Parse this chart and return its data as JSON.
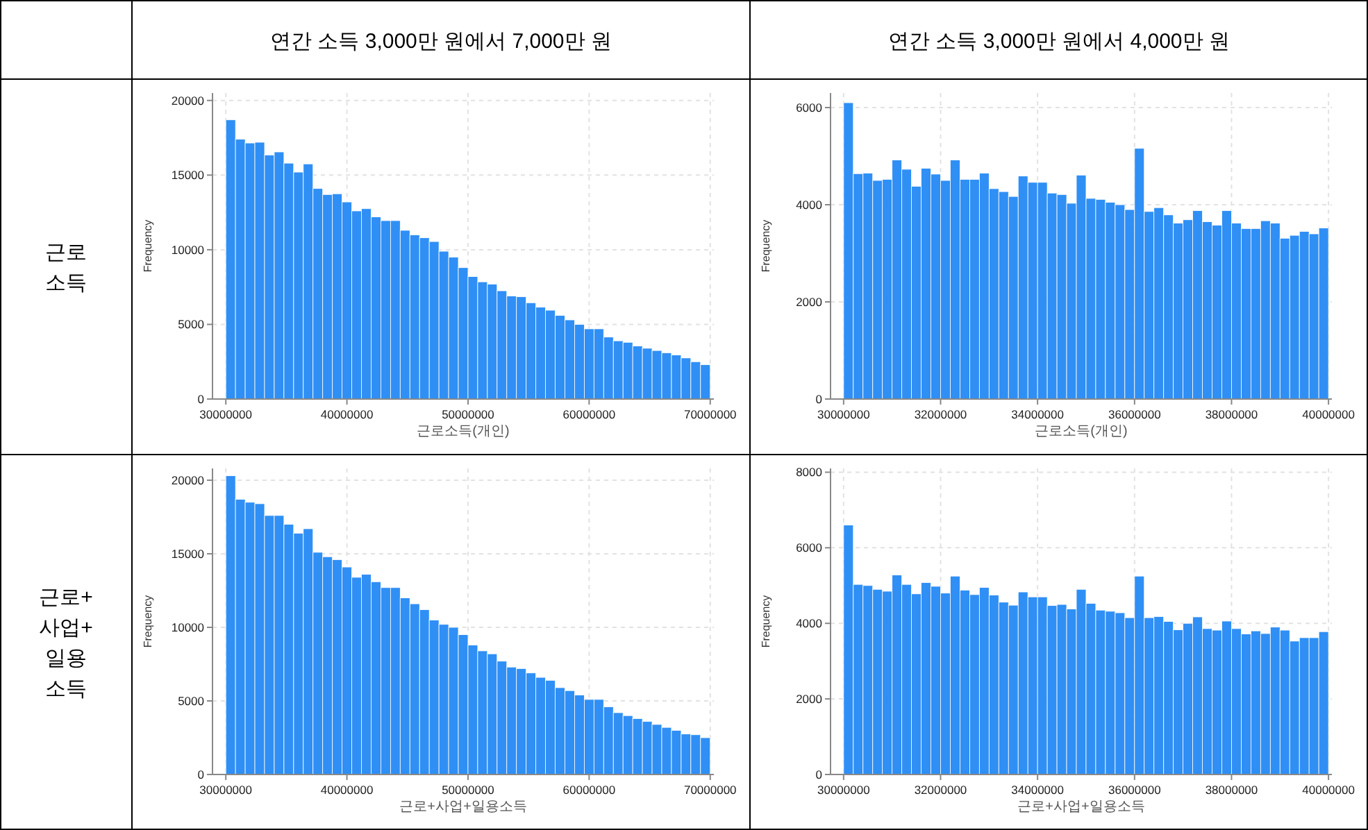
{
  "chart_data": [
    {
      "type": "histogram",
      "title": "연간 소득 3,000만 원에서 7,000만 원",
      "annotations": [
        "근로 소득"
      ],
      "xlabel": "근로소득(개인)",
      "ylabel": "Frequency",
      "color": "#2f8ff5",
      "grid": true,
      "bins": [
        30000000,
        30800000,
        31600000,
        32400000,
        33200000,
        34000000,
        34800000,
        35600000,
        36400000,
        37200000,
        38000000,
        38800000,
        39600000,
        40400000,
        41200000,
        42000000,
        42800000,
        43600000,
        44400000,
        45200000,
        46000000,
        46800000,
        47600000,
        48400000,
        49200000,
        50000000,
        50800000,
        51600000,
        52400000,
        53200000,
        54000000,
        54800000,
        55600000,
        56400000,
        57200000,
        58000000,
        58800000,
        59600000,
        60400000,
        61200000,
        62000000,
        62800000,
        63600000,
        64400000,
        65200000,
        66000000,
        66800000,
        67600000,
        68400000,
        69200000,
        70000000
      ],
      "values": [
        18700,
        17400,
        17150,
        17200,
        16350,
        16550,
        15800,
        15200,
        15750,
        14100,
        13700,
        13750,
        13200,
        12600,
        12750,
        12200,
        11950,
        11950,
        11300,
        11000,
        10800,
        10550,
        9900,
        9500,
        8800,
        8200,
        7850,
        7700,
        7250,
        6900,
        6850,
        6450,
        6150,
        5950,
        5600,
        5300,
        5000,
        4700,
        4700,
        4150,
        3900,
        3800,
        3550,
        3400,
        3250,
        3100,
        2950,
        2750,
        2500,
        2300
      ],
      "xlim": [
        28900000,
        70300000
      ],
      "xticks": [
        30000000,
        40000000,
        50000000,
        60000000,
        70000000
      ],
      "ylim": [
        0,
        20500
      ],
      "yticks": [
        0,
        5000,
        10000,
        15000,
        20000
      ]
    },
    {
      "type": "histogram",
      "title": "연간 소득 3,000만 원에서 4,000만 원",
      "xlabel": "근로소득(개인)",
      "ylabel": "Frequency",
      "color": "#2f8ff5",
      "grid": true,
      "bins": [
        30000000,
        30200000,
        30400000,
        30600000,
        30800000,
        31000000,
        31200000,
        31400000,
        31600000,
        31800000,
        32000000,
        32200000,
        32400000,
        32600000,
        32800000,
        33000000,
        33200000,
        33400000,
        33600000,
        33800000,
        34000000,
        34200000,
        34400000,
        34600000,
        34800000,
        35000000,
        35200000,
        35400000,
        35600000,
        35800000,
        36000000,
        36200000,
        36400000,
        36600000,
        36800000,
        37000000,
        37200000,
        37400000,
        37600000,
        37800000,
        38000000,
        38200000,
        38400000,
        38600000,
        38800000,
        39000000,
        39200000,
        39400000,
        39600000,
        39800000,
        40000000
      ],
      "values": [
        6100,
        4640,
        4650,
        4500,
        4520,
        4920,
        4730,
        4380,
        4750,
        4630,
        4500,
        4920,
        4520,
        4520,
        4650,
        4330,
        4270,
        4170,
        4590,
        4460,
        4460,
        4240,
        4210,
        4030,
        4610,
        4130,
        4110,
        4050,
        4000,
        3900,
        5160,
        3860,
        3940,
        3790,
        3620,
        3690,
        3880,
        3650,
        3580,
        3880,
        3620,
        3510,
        3510,
        3670,
        3620,
        3310,
        3370,
        3450,
        3400,
        3520
      ],
      "xlim": [
        29730000,
        40070000
      ],
      "xticks": [
        30000000,
        32000000,
        34000000,
        36000000,
        38000000,
        40000000
      ],
      "ylim": [
        0,
        6300
      ],
      "yticks": [
        0,
        2000,
        4000,
        6000
      ]
    },
    {
      "type": "histogram",
      "annotations": [
        "근로+ 사업+ 일용 소득"
      ],
      "xlabel": "근로+사업+일용소득",
      "ylabel": "Frequency",
      "color": "#2f8ff5",
      "grid": true,
      "bins": [
        30000000,
        30800000,
        31600000,
        32400000,
        33200000,
        34000000,
        34800000,
        35600000,
        36400000,
        37200000,
        38000000,
        38800000,
        39600000,
        40400000,
        41200000,
        42000000,
        42800000,
        43600000,
        44400000,
        45200000,
        46000000,
        46800000,
        47600000,
        48400000,
        49200000,
        50000000,
        50800000,
        51600000,
        52400000,
        53200000,
        54000000,
        54800000,
        55600000,
        56400000,
        57200000,
        58000000,
        58800000,
        59600000,
        60400000,
        61200000,
        62000000,
        62800000,
        63600000,
        64400000,
        65200000,
        66000000,
        66800000,
        67600000,
        68400000,
        69200000,
        70000000
      ],
      "values": [
        20300,
        18700,
        18500,
        18400,
        17600,
        17600,
        17000,
        16400,
        16700,
        15100,
        14800,
        14600,
        14100,
        13400,
        13600,
        13100,
        12700,
        12700,
        12000,
        11600,
        11200,
        10500,
        10200,
        10000,
        9500,
        8800,
        8400,
        8200,
        7700,
        7300,
        7200,
        6900,
        6600,
        6400,
        5900,
        5700,
        5400,
        5100,
        5100,
        4600,
        4200,
        4000,
        3800,
        3600,
        3400,
        3200,
        3000,
        2750,
        2700,
        2500
      ],
      "xlim": [
        28900000,
        70300000
      ],
      "xticks": [
        30000000,
        40000000,
        50000000,
        60000000,
        70000000
      ],
      "ylim": [
        0,
        20800
      ],
      "yticks": [
        0,
        5000,
        10000,
        15000,
        20000
      ]
    },
    {
      "type": "histogram",
      "xlabel": "근로+사업+일용소득",
      "ylabel": "Frequency",
      "color": "#2f8ff5",
      "grid": true,
      "bins": [
        30000000,
        30200000,
        30400000,
        30600000,
        30800000,
        31000000,
        31200000,
        31400000,
        31600000,
        31800000,
        32000000,
        32200000,
        32400000,
        32600000,
        32800000,
        33000000,
        33200000,
        33400000,
        33600000,
        33800000,
        34000000,
        34200000,
        34400000,
        34600000,
        34800000,
        35000000,
        35200000,
        35400000,
        35600000,
        35800000,
        36000000,
        36200000,
        36400000,
        36600000,
        36800000,
        37000000,
        37200000,
        37400000,
        37600000,
        37800000,
        38000000,
        38200000,
        38400000,
        38600000,
        38800000,
        39000000,
        39200000,
        39400000,
        39600000,
        39800000,
        40000000
      ],
      "values": [
        6600,
        5030,
        5000,
        4900,
        4850,
        5280,
        5030,
        4780,
        5080,
        4980,
        4800,
        5250,
        4880,
        4760,
        4950,
        4750,
        4560,
        4480,
        4830,
        4700,
        4700,
        4470,
        4500,
        4380,
        4900,
        4530,
        4350,
        4320,
        4280,
        4150,
        5250,
        4150,
        4180,
        4050,
        3830,
        4000,
        4170,
        3860,
        3820,
        4060,
        3860,
        3720,
        3800,
        3730,
        3900,
        3820,
        3530,
        3620,
        3620,
        3780
      ],
      "xlim": [
        29730000,
        40070000
      ],
      "xticks": [
        30000000,
        32000000,
        34000000,
        36000000,
        38000000,
        40000000
      ],
      "ylim": [
        0,
        8100
      ],
      "yticks": [
        0,
        2000,
        4000,
        6000,
        8000
      ]
    }
  ]
}
